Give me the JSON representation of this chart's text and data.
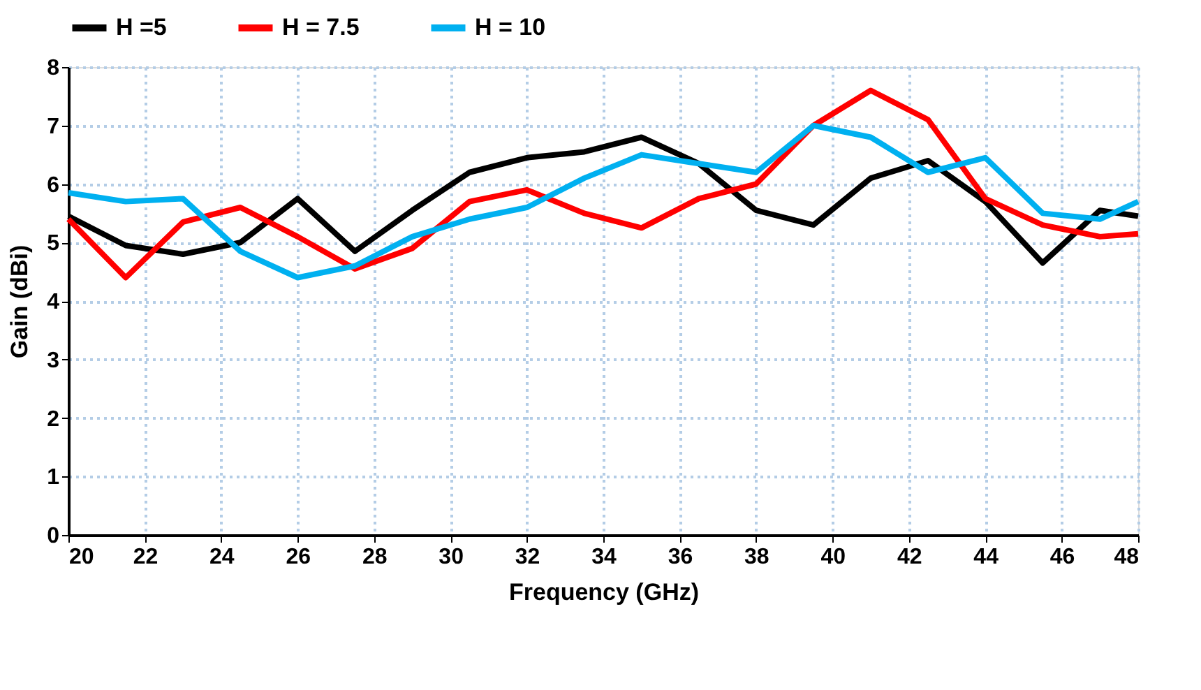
{
  "chart_data": {
    "type": "line",
    "xlabel": "Frequency (GHz)",
    "ylabel": "Gain (dBi)",
    "x": [
      20,
      21.5,
      23,
      24.5,
      26,
      27.5,
      29,
      30.5,
      32,
      33.5,
      35,
      36.5,
      38,
      39.5,
      41,
      42.5,
      44,
      45.5,
      47,
      48
    ],
    "series": [
      {
        "name": "H =5",
        "color": "#000000",
        "values": [
          5.45,
          4.95,
          4.8,
          5.0,
          5.75,
          4.85,
          5.55,
          6.2,
          6.45,
          6.55,
          6.8,
          6.35,
          5.55,
          5.3,
          6.1,
          6.4,
          5.7,
          4.65,
          5.55,
          5.45
        ]
      },
      {
        "name": "H = 7.5",
        "color": "#ff0000",
        "values": [
          5.4,
          4.4,
          5.35,
          5.6,
          5.1,
          4.55,
          4.9,
          5.7,
          5.9,
          5.5,
          5.25,
          5.75,
          6.0,
          7.0,
          7.6,
          7.1,
          5.75,
          5.3,
          5.1,
          5.15
        ]
      },
      {
        "name": "H = 10",
        "color": "#00b0f0",
        "values": [
          5.85,
          5.7,
          5.75,
          4.85,
          4.4,
          4.6,
          5.1,
          5.4,
          5.6,
          6.1,
          6.5,
          6.35,
          6.2,
          7.0,
          6.8,
          6.2,
          6.45,
          5.5,
          5.4,
          5.7
        ]
      }
    ],
    "xlim": [
      20,
      48
    ],
    "xticks": [
      20,
      22,
      24,
      26,
      28,
      30,
      32,
      34,
      36,
      38,
      40,
      42,
      44,
      46,
      48
    ],
    "ylim": [
      0,
      8
    ],
    "yticks": [
      0,
      1,
      2,
      3,
      4,
      5,
      6,
      7,
      8
    ],
    "grid": true,
    "legend": "top",
    "marker": "none",
    "line_style": "solid"
  }
}
